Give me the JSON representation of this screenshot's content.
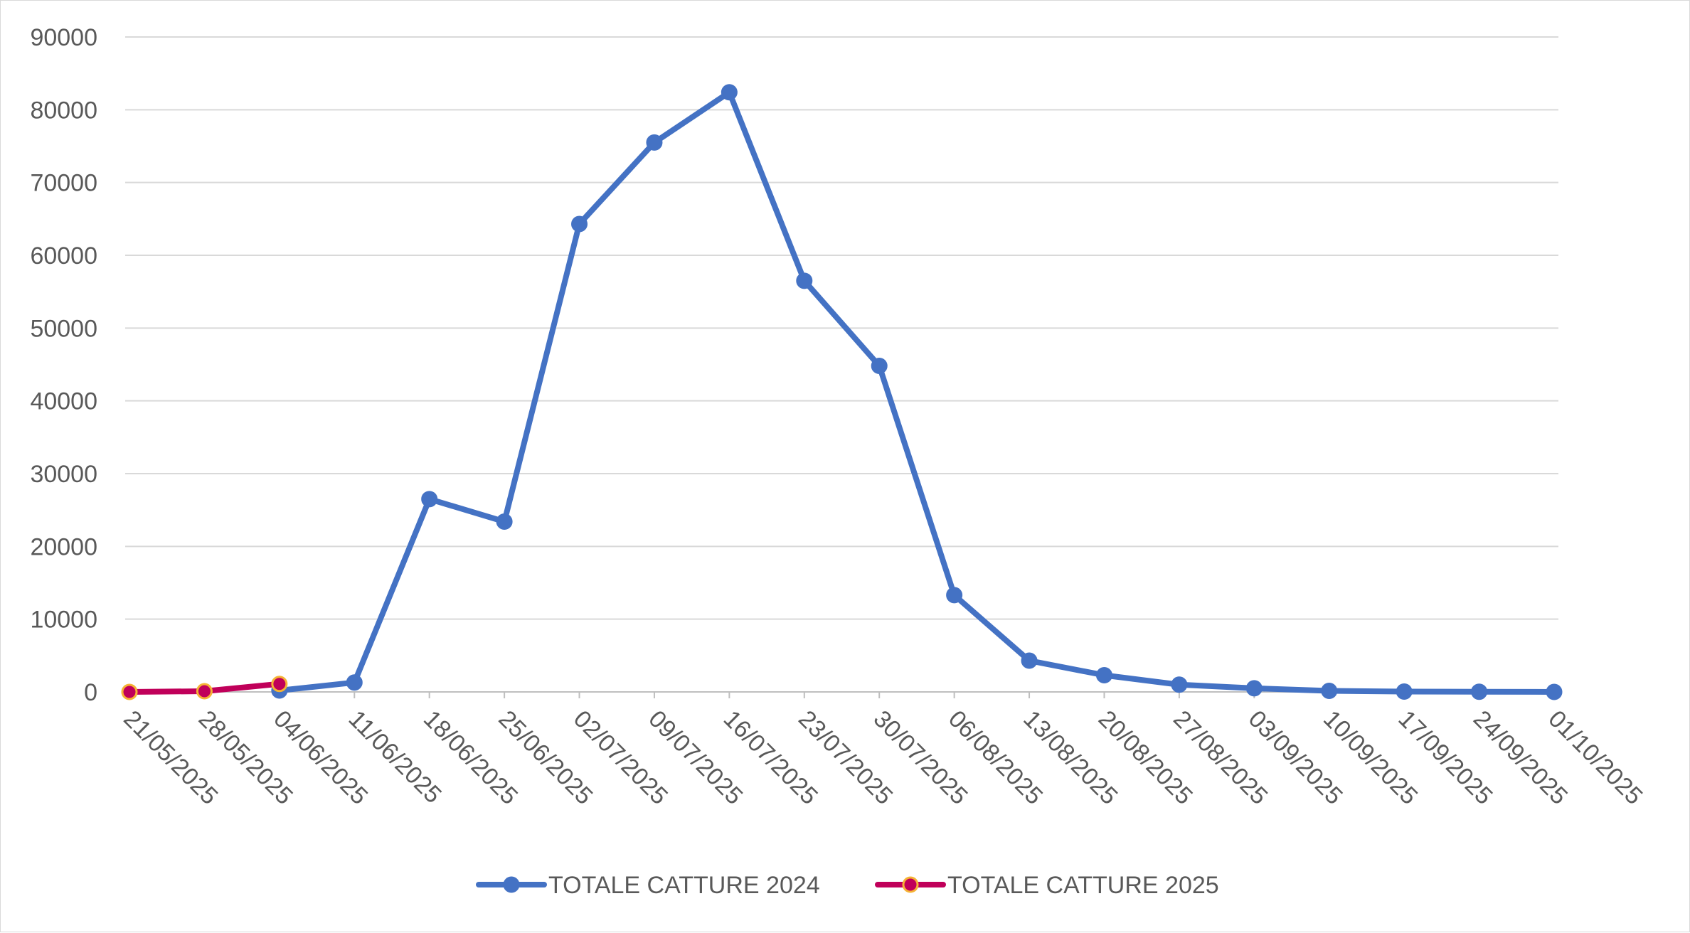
{
  "chart_data": {
    "type": "line",
    "title": "",
    "xlabel": "",
    "ylabel": "",
    "ylim": [
      0,
      90000
    ],
    "yticks": [
      0,
      10000,
      20000,
      30000,
      40000,
      50000,
      60000,
      70000,
      80000,
      90000
    ],
    "grid": "horizontal",
    "legend_position": "bottom",
    "categories": [
      "21/05/2025",
      "28/05/2025",
      "04/06/2025",
      "11/06/2025",
      "18/06/2025",
      "25/06/2025",
      "02/07/2025",
      "09/07/2025",
      "16/07/2025",
      "23/07/2025",
      "30/07/2025",
      "06/08/2025",
      "13/08/2025",
      "20/08/2025",
      "27/08/2025",
      "03/09/2025",
      "10/09/2025",
      "17/09/2025",
      "24/09/2025",
      "01/10/2025"
    ],
    "series": [
      {
        "name": "TOTALE CATTURE 2024",
        "color": "#4472C4",
        "marker_fill": "#4472C4",
        "marker_stroke": "#4472C4",
        "values": [
          null,
          null,
          200,
          1300,
          26500,
          23400,
          64300,
          75500,
          82400,
          56500,
          44800,
          13300,
          4300,
          2300,
          1000,
          500,
          150,
          50,
          30,
          0
        ]
      },
      {
        "name": "TOTALE CATTURE 2025",
        "color": "#C0005A",
        "marker_fill": "#C0005A",
        "marker_stroke": "#F5B335",
        "values": [
          0,
          100,
          1100,
          null,
          null,
          null,
          null,
          null,
          null,
          null,
          null,
          null,
          null,
          null,
          null,
          null,
          null,
          null,
          null,
          null
        ]
      }
    ]
  }
}
